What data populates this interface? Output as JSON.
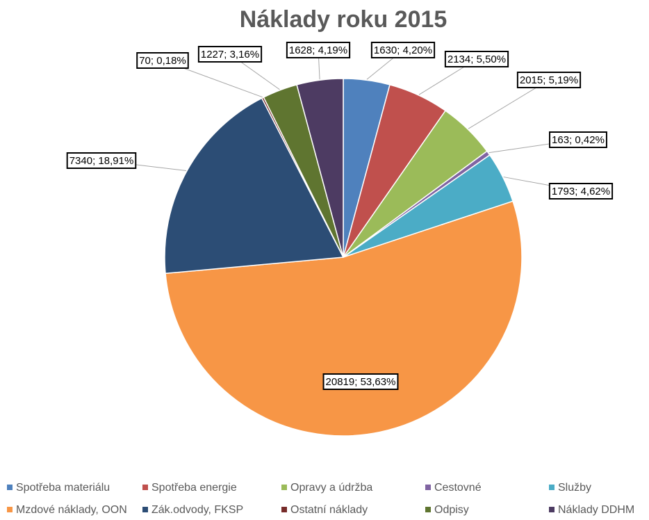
{
  "chart_data": {
    "type": "pie",
    "title": "Náklady roku 2015",
    "categories": [
      "Spotřeba materiálu",
      "Spotřeba energie",
      "Opravy a údržba",
      "Cestovné",
      "Služby",
      "Mzdové náklady, OON",
      "Zák.odvody, FKSP",
      "Ostatní náklady",
      "Odpisy",
      "Náklady DDHM"
    ],
    "values": [
      1630,
      2134,
      2015,
      163,
      1793,
      20819,
      7340,
      70,
      1227,
      1628
    ],
    "value_labels": [
      "1630; 4,20%",
      "2134; 5,50%",
      "2015; 5,19%",
      "163; 0,42%",
      "1793; 4,62%",
      "20819; 53,63%",
      "7340; 18,91%",
      "70; 0,18%",
      "1227; 3,16%",
      "1628; 4,19%"
    ],
    "colors": [
      "#4f81bd",
      "#c0504d",
      "#9bbb59",
      "#8064a2",
      "#4bacc6",
      "#f79646",
      "#2c4d75",
      "#772c2a",
      "#5f7530",
      "#4d3b62"
    ],
    "legend": "bottom"
  }
}
